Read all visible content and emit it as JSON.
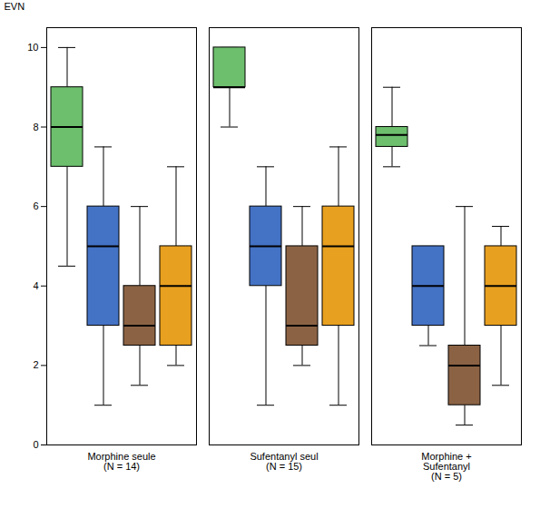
{
  "chart_data": {
    "type": "box",
    "categories": [
      "Morphine seule\n(N = 14)",
      "Sufentanyl seul\n(N = 15)",
      "Morphine +\nSufentanyl\n(N = 5)"
    ],
    "series": [
      {
        "color": "#6dbf6d",
        "whislo": [
          4.5,
          8.0,
          7.0
        ],
        "q1": [
          7.0,
          9.0,
          7.5
        ],
        "med": [
          8.0,
          9.0,
          7.8
        ],
        "q3": [
          9.0,
          10.0,
          8.0
        ],
        "whishi": [
          10.0,
          10.0,
          9.0
        ]
      },
      {
        "color": "#4472c4",
        "whislo": [
          1.0,
          1.0,
          2.5
        ],
        "q1": [
          3.0,
          4.0,
          3.0
        ],
        "med": [
          5.0,
          5.0,
          4.0
        ],
        "q3": [
          6.0,
          6.0,
          5.0
        ],
        "whishi": [
          7.5,
          7.0,
          5.0
        ]
      },
      {
        "color": "#8b6344",
        "whislo": [
          1.5,
          2.0,
          0.5
        ],
        "q1": [
          2.5,
          2.5,
          1.0
        ],
        "med": [
          3.0,
          3.0,
          2.0
        ],
        "q3": [
          4.0,
          5.0,
          2.5
        ],
        "whishi": [
          6.0,
          6.0,
          6.0
        ]
      },
      {
        "color": "#e8a020",
        "whislo": [
          2.0,
          1.0,
          1.5
        ],
        "q1": [
          2.5,
          3.0,
          3.0
        ],
        "med": [
          4.0,
          5.0,
          4.0
        ],
        "q3": [
          5.0,
          6.0,
          5.0
        ],
        "whishi": [
          7.0,
          7.5,
          5.5
        ]
      }
    ],
    "ylabel": "EVN",
    "ylim": [
      0,
      10.5
    ],
    "yticks": [
      0,
      2,
      4,
      6,
      8,
      10
    ],
    "grid": false
  }
}
